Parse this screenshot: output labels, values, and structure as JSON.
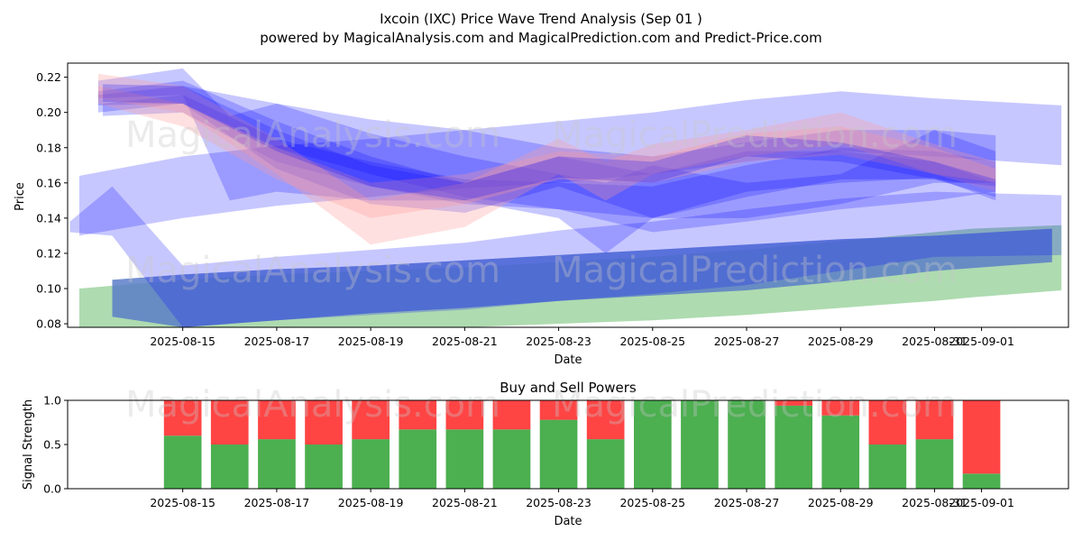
{
  "title": "Ixcoin (IXC) Price Wave Trend Analysis (Sep 01 )",
  "subtitle": "powered by MagicalAnalysis.com and MagicalPrediction.com and Predict-Price.com",
  "watermarks": [
    "MagicalAnalysis.com",
    "MagicalPrediction.com"
  ],
  "colors": {
    "wave_blue": "#0000ff",
    "wave_red": "#ff9999",
    "green_band": "#4caf50",
    "steel_band": "#5b7ec8",
    "buy": "#4caf50",
    "sell": "#ff4444"
  },
  "chart_data": [
    {
      "type": "area",
      "xlabel": "Date",
      "ylabel": "Price",
      "ylim": [
        0.078,
        0.228
      ],
      "yticks": [
        0.08,
        0.1,
        0.12,
        0.14,
        0.16,
        0.18,
        0.2,
        0.22
      ],
      "ytick_labels": [
        "0.08",
        "0.10",
        "0.12",
        "0.14",
        "0.16",
        "0.18",
        "0.20",
        "0.22"
      ],
      "x_start": "2025-08-12",
      "xlim_days": [
        0.55,
        21.85
      ],
      "xtick_labels": [
        "2025-08-15",
        "2025-08-17",
        "2025-08-19",
        "2025-08-21",
        "2025-08-23",
        "2025-08-25",
        "2025-08-27",
        "2025-08-29",
        "2025-08-31",
        "2025-09-01"
      ],
      "xtick_days": [
        3,
        5,
        7,
        9,
        11,
        13,
        15,
        17,
        19,
        20
      ],
      "grid": false,
      "bands": [
        {
          "kind": "green",
          "days": [
            0.8,
            3,
            5,
            7,
            9,
            11,
            13,
            15,
            17,
            19,
            19.8,
            21.7
          ],
          "upper": [
            0.1,
            0.105,
            0.108,
            0.11,
            0.112,
            0.115,
            0.118,
            0.122,
            0.127,
            0.132,
            0.134,
            0.136
          ],
          "lower": [
            0.078,
            0.078,
            0.078,
            0.078,
            0.078,
            0.08,
            0.082,
            0.085,
            0.089,
            0.093,
            0.095,
            0.099
          ]
        },
        {
          "kind": "steel",
          "days": [
            1.5,
            3,
            5,
            7,
            9,
            11,
            13,
            15,
            17,
            19,
            21.5
          ],
          "upper": [
            0.105,
            0.108,
            0.111,
            0.113,
            0.116,
            0.119,
            0.122,
            0.125,
            0.128,
            0.13,
            0.134
          ],
          "lower": [
            0.084,
            0.078,
            0.082,
            0.086,
            0.089,
            0.093,
            0.096,
            0.099,
            0.104,
            0.11,
            0.115
          ]
        },
        {
          "kind": "blue",
          "days": [
            0.6,
            1.5,
            3,
            5,
            7,
            9,
            11,
            13,
            15,
            17,
            19,
            21.7
          ],
          "upper": [
            0.138,
            0.158,
            0.113,
            0.118,
            0.122,
            0.126,
            0.133,
            0.138,
            0.145,
            0.151,
            0.155,
            0.153
          ],
          "lower": [
            0.132,
            0.13,
            0.078,
            0.082,
            0.085,
            0.088,
            0.093,
            0.097,
            0.102,
            0.11,
            0.118,
            0.119
          ]
        },
        {
          "kind": "blue",
          "days": [
            0.8,
            3,
            5,
            7,
            9,
            11,
            13,
            15,
            17,
            19,
            21.7
          ],
          "upper": [
            0.164,
            0.175,
            0.181,
            0.185,
            0.19,
            0.195,
            0.2,
            0.207,
            0.212,
            0.208,
            0.204
          ],
          "lower": [
            0.13,
            0.14,
            0.147,
            0.152,
            0.157,
            0.16,
            0.165,
            0.172,
            0.178,
            0.175,
            0.17
          ]
        },
        {
          "kind": "blue",
          "days": [
            1.2,
            3,
            5,
            7,
            9,
            11,
            13,
            15,
            17,
            19,
            20.3
          ],
          "upper": [
            0.21,
            0.215,
            0.205,
            0.196,
            0.19,
            0.18,
            0.175,
            0.183,
            0.19,
            0.19,
            0.187
          ],
          "lower": [
            0.2,
            0.205,
            0.18,
            0.165,
            0.152,
            0.145,
            0.132,
            0.138,
            0.145,
            0.15,
            0.155
          ]
        },
        {
          "kind": "blue",
          "days": [
            1.2,
            3,
            5,
            7,
            9,
            11,
            13,
            15,
            17,
            19,
            20.3
          ],
          "upper": [
            0.212,
            0.218,
            0.195,
            0.175,
            0.16,
            0.175,
            0.165,
            0.178,
            0.178,
            0.172,
            0.16
          ],
          "lower": [
            0.204,
            0.205,
            0.168,
            0.148,
            0.143,
            0.158,
            0.14,
            0.155,
            0.16,
            0.163,
            0.15
          ]
        },
        {
          "kind": "blue",
          "days": [
            1.2,
            3,
            4,
            5,
            7,
            9,
            11,
            12,
            13,
            15,
            17,
            19,
            20.3
          ],
          "upper": [
            0.218,
            0.225,
            0.198,
            0.205,
            0.188,
            0.175,
            0.165,
            0.16,
            0.17,
            0.16,
            0.165,
            0.19,
            0.178
          ],
          "lower": [
            0.208,
            0.21,
            0.15,
            0.155,
            0.15,
            0.15,
            0.14,
            0.12,
            0.14,
            0.14,
            0.148,
            0.16,
            0.16
          ]
        },
        {
          "kind": "blue",
          "days": [
            1.3,
            3,
            5,
            7,
            9,
            11,
            13,
            15,
            17,
            19,
            20.3
          ],
          "upper": [
            0.205,
            0.21,
            0.185,
            0.172,
            0.162,
            0.16,
            0.158,
            0.17,
            0.18,
            0.178,
            0.172
          ],
          "lower": [
            0.198,
            0.2,
            0.172,
            0.158,
            0.148,
            0.145,
            0.14,
            0.152,
            0.162,
            0.162,
            0.158
          ]
        },
        {
          "kind": "red",
          "days": [
            1.2,
            3,
            5,
            7,
            9,
            11,
            12,
            13,
            15,
            17,
            19,
            20.3
          ],
          "upper": [
            0.222,
            0.215,
            0.185,
            0.15,
            0.16,
            0.185,
            0.172,
            0.182,
            0.19,
            0.2,
            0.182,
            0.172
          ],
          "lower": [
            0.208,
            0.2,
            0.165,
            0.125,
            0.135,
            0.165,
            0.15,
            0.165,
            0.175,
            0.182,
            0.165,
            0.16
          ]
        },
        {
          "kind": "red",
          "days": [
            1.2,
            3,
            5,
            7,
            9,
            11,
            13,
            15,
            17,
            19,
            20.3
          ],
          "upper": [
            0.215,
            0.205,
            0.18,
            0.16,
            0.165,
            0.178,
            0.175,
            0.188,
            0.192,
            0.18,
            0.168
          ],
          "lower": [
            0.205,
            0.192,
            0.162,
            0.14,
            0.148,
            0.162,
            0.16,
            0.172,
            0.176,
            0.165,
            0.155
          ]
        },
        {
          "kind": "blue",
          "days": [
            1.3,
            3,
            5,
            7,
            9,
            11,
            13,
            15,
            17,
            19,
            20.3
          ],
          "upper": [
            0.216,
            0.215,
            0.19,
            0.17,
            0.16,
            0.175,
            0.172,
            0.187,
            0.183,
            0.172,
            0.162
          ],
          "lower": [
            0.206,
            0.205,
            0.178,
            0.158,
            0.15,
            0.163,
            0.16,
            0.175,
            0.172,
            0.162,
            0.152
          ]
        }
      ]
    },
    {
      "type": "bar",
      "title": "Buy and Sell Powers",
      "xlabel": "Date",
      "ylabel": "Signal Strength",
      "ylim": [
        0,
        1
      ],
      "yticks": [
        0.0,
        0.5,
        1.0
      ],
      "ytick_labels": [
        "0.0",
        "0.5",
        "1.0"
      ],
      "categories": [
        "2025-08-15",
        "2025-08-16",
        "2025-08-17",
        "2025-08-18",
        "2025-08-19",
        "2025-08-20",
        "2025-08-21",
        "2025-08-22",
        "2025-08-23",
        "2025-08-24",
        "2025-08-25",
        "2025-08-26",
        "2025-08-27",
        "2025-08-28",
        "2025-08-29",
        "2025-08-30",
        "2025-08-31",
        "2025-09-01"
      ],
      "xtick_labels": [
        "2025-08-15",
        "2025-08-17",
        "2025-08-19",
        "2025-08-21",
        "2025-08-23",
        "2025-08-25",
        "2025-08-27",
        "2025-08-29",
        "2025-08-31",
        "2025-09-01"
      ],
      "xtick_days": [
        3,
        5,
        7,
        9,
        11,
        13,
        15,
        17,
        19,
        20
      ],
      "bar_days": [
        3,
        4,
        5,
        6,
        7,
        8,
        9,
        10,
        11,
        12,
        13,
        14,
        15,
        16,
        17,
        18,
        19,
        20
      ],
      "xlim_days": [
        0.55,
        21.85
      ],
      "series": [
        {
          "key": "buy",
          "values": [
            0.6,
            0.5,
            0.56,
            0.5,
            0.56,
            0.67,
            0.67,
            0.67,
            0.78,
            0.56,
            1.0,
            1.0,
            1.0,
            0.94,
            0.83,
            0.5,
            0.56,
            0.17
          ]
        },
        {
          "key": "sell",
          "values": [
            0.4,
            0.5,
            0.44,
            0.5,
            0.44,
            0.33,
            0.33,
            0.33,
            0.22,
            0.44,
            0.0,
            0.0,
            0.0,
            0.06,
            0.17,
            0.5,
            0.44,
            0.83
          ]
        }
      ]
    }
  ]
}
